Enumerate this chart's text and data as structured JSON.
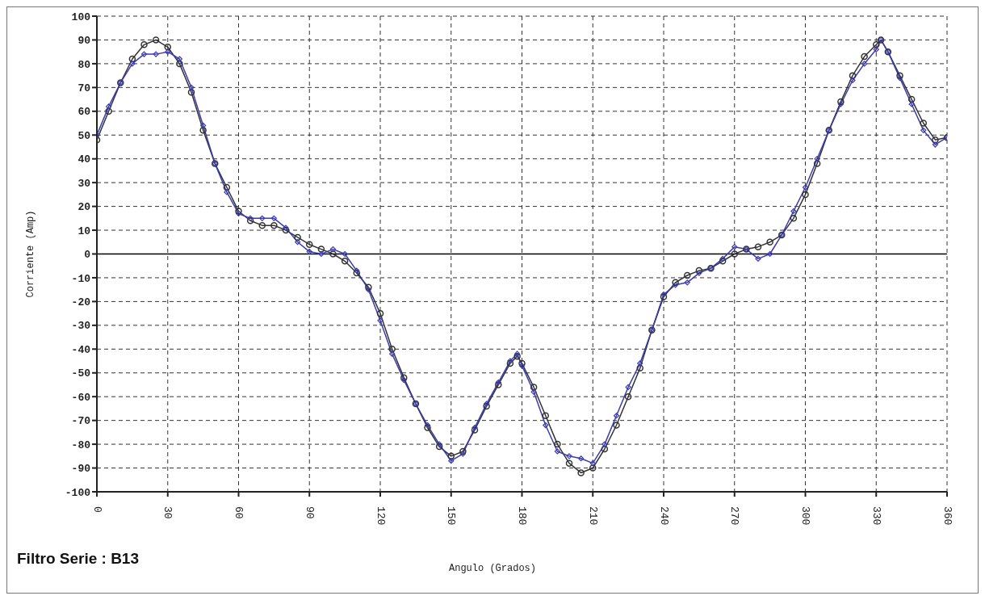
{
  "chart_data": {
    "type": "line",
    "xlabel": "Angulo (Grados)",
    "ylabel": "Corriente (Amp)",
    "annotations": [
      "Filtro Serie : B13"
    ],
    "x": [
      0,
      5,
      10,
      15,
      20,
      25,
      30,
      35,
      40,
      45,
      50,
      55,
      60,
      65,
      70,
      75,
      80,
      85,
      90,
      95,
      100,
      105,
      110,
      115,
      120,
      125,
      130,
      135,
      140,
      145,
      150,
      155,
      160,
      165,
      170,
      175,
      178,
      180,
      185,
      190,
      195,
      200,
      205,
      210,
      215,
      220,
      225,
      230,
      235,
      240,
      245,
      250,
      255,
      260,
      265,
      270,
      275,
      280,
      285,
      290,
      295,
      300,
      305,
      310,
      315,
      320,
      325,
      330,
      332,
      335,
      340,
      345,
      350,
      355,
      360
    ],
    "series": [
      {
        "color": "#333333",
        "marker": "circle",
        "values": [
          48,
          60,
          72,
          82,
          88,
          90,
          87,
          80,
          68,
          52,
          38,
          28,
          18,
          14,
          12,
          12,
          10,
          7,
          4,
          2,
          0,
          -3,
          -8,
          -14,
          -25,
          -40,
          -52,
          -63,
          -73,
          -81,
          -85,
          -83,
          -74,
          -64,
          -55,
          -46,
          -43,
          -46,
          -56,
          -68,
          -80,
          -88,
          -92,
          -90,
          -82,
          -72,
          -60,
          -48,
          -32,
          -18,
          -12,
          -9,
          -7,
          -6,
          -3,
          0,
          2,
          3,
          5,
          8,
          15,
          25,
          38,
          52,
          64,
          75,
          83,
          88,
          90,
          85,
          75,
          65,
          55,
          48,
          49
        ]
      },
      {
        "color": "#3b3bb0",
        "marker": "diamond",
        "values": [
          50,
          62,
          72,
          80,
          84,
          84,
          85,
          82,
          70,
          54,
          38,
          26,
          17,
          15,
          15,
          15,
          11,
          5,
          1,
          0,
          2,
          0,
          -7,
          -15,
          -28,
          -42,
          -53,
          -63,
          -72,
          -80,
          -87,
          -84,
          -73,
          -63,
          -54,
          -45,
          -42,
          -47,
          -58,
          -72,
          -83,
          -85,
          -86,
          -88,
          -80,
          -68,
          -56,
          -46,
          -32,
          -17,
          -13,
          -12,
          -8,
          -6,
          -2,
          3,
          2,
          -2,
          0,
          8,
          18,
          28,
          40,
          52,
          63,
          73,
          80,
          86,
          90,
          85,
          74,
          63,
          52,
          46,
          49
        ]
      }
    ],
    "xlim": [
      0,
      360
    ],
    "xticks": [
      0,
      30,
      60,
      90,
      120,
      150,
      180,
      210,
      240,
      270,
      300,
      330,
      360
    ],
    "ylim": [
      -100,
      100
    ],
    "yticks": [
      -100,
      -90,
      -80,
      -70,
      -60,
      -50,
      -40,
      -30,
      -20,
      -10,
      0,
      10,
      20,
      30,
      40,
      50,
      60,
      70,
      80,
      90,
      100
    ],
    "grid": true,
    "ref_lines": [
      {
        "axis": "y",
        "value": 0,
        "color": "#000000"
      }
    ]
  }
}
